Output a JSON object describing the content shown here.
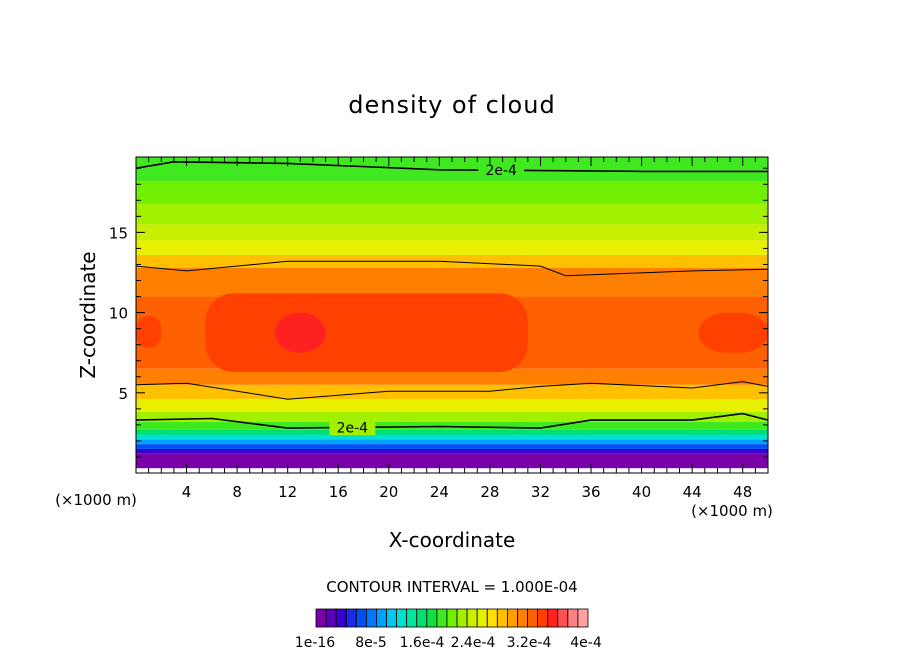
{
  "chart_data": {
    "type": "heatmap",
    "title": "density of cloud",
    "xlabel": "X-coordinate",
    "ylabel": "Z-coordinate",
    "x_unit": "(×1000 m)",
    "y_unit": "(×1000 m)",
    "xlim": [
      0,
      50
    ],
    "ylim": [
      0,
      19.7
    ],
    "x_ticks": [
      4,
      8,
      12,
      16,
      20,
      24,
      28,
      32,
      36,
      40,
      44,
      48
    ],
    "y_ticks": [
      5,
      10,
      15
    ],
    "contour_interval_text": "CONTOUR INTERVAL = 1.000E-04",
    "contour_labels": [
      "2e-4",
      "2e-4"
    ],
    "colorbar": {
      "labels": [
        "1e-16",
        "8e-5",
        "1.6e-4",
        "2.4e-4",
        "3.2e-4",
        "4e-4"
      ],
      "colors": [
        "#7a00a8",
        "#5a00b8",
        "#3a00d0",
        "#1e28e8",
        "#0050f5",
        "#0078ff",
        "#00a0ff",
        "#00c8f0",
        "#00e0d0",
        "#00e8a0",
        "#00e070",
        "#10e040",
        "#40e820",
        "#70f000",
        "#a0f000",
        "#c8f000",
        "#e8f000",
        "#ffe000",
        "#ffc000",
        "#ffa000",
        "#ff8000",
        "#ff6000",
        "#ff4000",
        "#ff2020",
        "#ff5050",
        "#ff8080",
        "#ffa0a0"
      ]
    },
    "layers": [
      {
        "z_bottom": 0.3,
        "z_top": 1.2,
        "color": "#7a00a8"
      },
      {
        "z_bottom": 1.2,
        "z_top": 1.5,
        "color": "#3a00d0"
      },
      {
        "z_bottom": 1.5,
        "z_top": 1.8,
        "color": "#0050f5"
      },
      {
        "z_bottom": 1.8,
        "z_top": 2.1,
        "color": "#00a0ff"
      },
      {
        "z_bottom": 2.1,
        "z_top": 2.4,
        "color": "#00e0d0"
      },
      {
        "z_bottom": 2.4,
        "z_top": 2.7,
        "color": "#00e070"
      },
      {
        "z_bottom": 2.7,
        "z_top": 3.2,
        "color": "#40e820"
      },
      {
        "z_bottom": 3.2,
        "z_top": 3.8,
        "color": "#a0f000"
      },
      {
        "z_bottom": 3.8,
        "z_top": 4.6,
        "color": "#e8f000"
      },
      {
        "z_bottom": 4.6,
        "z_top": 5.5,
        "color": "#ffc000"
      },
      {
        "z_bottom": 5.5,
        "z_top": 6.5,
        "color": "#ff8000"
      },
      {
        "z_bottom": 6.5,
        "z_top": 11.0,
        "color": "#ff6000"
      },
      {
        "z_bottom": 11.0,
        "z_top": 12.8,
        "color": "#ff8000"
      },
      {
        "z_bottom": 12.8,
        "z_top": 13.6,
        "color": "#ffc000"
      },
      {
        "z_bottom": 13.6,
        "z_top": 14.5,
        "color": "#e8f000"
      },
      {
        "z_bottom": 14.5,
        "z_top": 15.5,
        "color": "#c8f000"
      },
      {
        "z_bottom": 15.5,
        "z_top": 16.8,
        "color": "#a0f000"
      },
      {
        "z_bottom": 16.8,
        "z_top": 18.2,
        "color": "#70f000"
      },
      {
        "z_bottom": 18.2,
        "z_top": 19.7,
        "color": "#40e820"
      }
    ],
    "high_regions": [
      {
        "x_range": [
          5.5,
          31
        ],
        "z_range": [
          6.3,
          11.2
        ],
        "color": "#ff4000"
      },
      {
        "x_range": [
          0,
          2
        ],
        "z_range": [
          7.8,
          9.8
        ],
        "color": "#ff4000"
      },
      {
        "x_range": [
          44.5,
          50
        ],
        "z_range": [
          7.5,
          10
        ],
        "color": "#ff4000"
      },
      {
        "x_range": [
          11,
          15
        ],
        "z_range": [
          7.5,
          10
        ],
        "color": "#ff2020"
      }
    ],
    "contour_lines": [
      {
        "label": "2e-4",
        "points": [
          [
            0,
            19.0
          ],
          [
            3,
            19.4
          ],
          [
            12,
            19.3
          ],
          [
            24,
            18.9
          ],
          [
            40,
            18.8
          ],
          [
            50,
            18.8
          ]
        ]
      },
      {
        "points": [
          [
            0,
            12.9
          ],
          [
            4,
            12.6
          ],
          [
            12,
            13.2
          ],
          [
            24,
            13.2
          ],
          [
            32,
            12.9
          ],
          [
            34,
            12.3
          ],
          [
            44,
            12.6
          ],
          [
            50,
            12.7
          ]
        ]
      },
      {
        "points": [
          [
            0,
            5.5
          ],
          [
            4,
            5.6
          ],
          [
            12,
            4.6
          ],
          [
            20,
            5.1
          ],
          [
            28,
            5.1
          ],
          [
            32,
            5.4
          ],
          [
            36,
            5.6
          ],
          [
            44,
            5.3
          ],
          [
            48,
            5.7
          ],
          [
            50,
            5.4
          ]
        ]
      },
      {
        "label": "2e-4",
        "points": [
          [
            0,
            3.3
          ],
          [
            6,
            3.4
          ],
          [
            12,
            2.8
          ],
          [
            24,
            2.9
          ],
          [
            32,
            2.8
          ],
          [
            36,
            3.3
          ],
          [
            44,
            3.3
          ],
          [
            48,
            3.7
          ],
          [
            50,
            3.3
          ]
        ]
      }
    ]
  }
}
